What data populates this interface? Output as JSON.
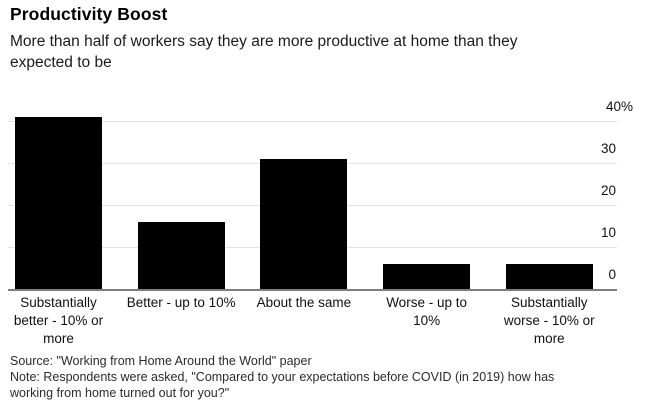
{
  "header": {
    "title": "Productivity Boost",
    "subtitle": "More than half of workers say they are more productive at home than they\nexpected to be"
  },
  "chart_data": {
    "type": "bar",
    "title": "Productivity Boost",
    "subtitle": "More than half of workers say they are more productive at home than they expected to be",
    "categories": [
      "Substantially better - 10% or more",
      "Better - up to 10%",
      "About the same",
      "Worse - up to 10%",
      "Substantially worse - 10% or more"
    ],
    "categories_wrapped": [
      "Substantially\nbetter - 10% or\nmore",
      "Better - up to 10%",
      "About the same",
      "Worse - up to\n10%",
      "Substantially\nworse - 10% or\nmore"
    ],
    "values": [
      41,
      16,
      31,
      6,
      6
    ],
    "unit": "%",
    "xlabel": "",
    "ylabel": "",
    "ylim": [
      0,
      42
    ],
    "yticks": [
      {
        "value": 0,
        "label": "0"
      },
      {
        "value": 10,
        "label": "10"
      },
      {
        "value": 20,
        "label": "20"
      },
      {
        "value": 30,
        "label": "30"
      },
      {
        "value": 40,
        "label": "40%"
      }
    ],
    "grid": "horizontal",
    "axis_side": "right",
    "legend": "none",
    "bar_color": "#000000"
  },
  "footer": {
    "source": "Source: \"Working from Home Around the World\" paper",
    "note": "Note: Respondents were asked, \"Compared to your expectations before COVID (in 2019) how has\nworking from home turned out for you?\""
  },
  "colors": {
    "bar": "#000000",
    "gridline": "#e2e2e2",
    "axis_line": "#7d7d80",
    "text": "#1a1a1a"
  }
}
